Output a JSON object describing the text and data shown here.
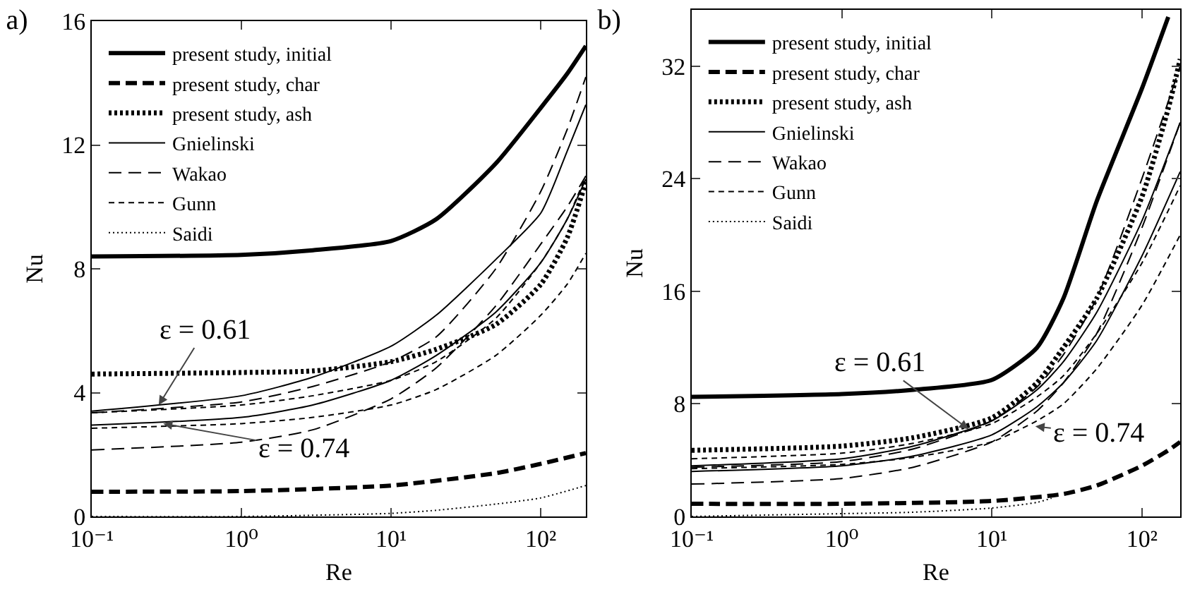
{
  "chart_data": [
    {
      "type": "line",
      "title": "a)",
      "xlabel": "Re",
      "ylabel": "Nu",
      "log": "x",
      "legend": "top left",
      "xlim": [
        0.1,
        200
      ],
      "xticks": [
        {
          "value": 0.1,
          "label": "10⁻¹"
        },
        {
          "value": 1,
          "label": "10⁰"
        },
        {
          "value": 10,
          "label": "10¹"
        },
        {
          "value": 100,
          "label": "10²"
        }
      ],
      "ylim": [
        0,
        16
      ],
      "yticks": [
        0,
        4,
        8,
        12,
        16
      ],
      "annotations": [
        {
          "text": "ε = 0.61",
          "x": 0.28,
          "y": 3.6
        },
        {
          "text": "ε = 0.74",
          "x": 0.3,
          "y": 3.0
        }
      ],
      "series": [
        {
          "name": "present study, initial",
          "color": "#000000",
          "line_style": "solid",
          "x": [
            0.1,
            1,
            3,
            10,
            20,
            50,
            100,
            150,
            200
          ],
          "values": [
            8.4,
            8.45,
            8.6,
            8.9,
            9.6,
            11.4,
            13.2,
            14.3,
            15.2
          ]
        },
        {
          "name": "present study, char",
          "color": "#000000",
          "line_style": "dashed",
          "x": [
            0.1,
            1,
            10,
            50,
            100,
            200
          ],
          "values": [
            0.8,
            0.82,
            1.0,
            1.4,
            1.7,
            2.05
          ]
        },
        {
          "name": "present study, ash",
          "color": "#000000",
          "line_style": "dotted",
          "x": [
            0.1,
            1,
            3,
            10,
            20,
            50,
            100,
            150,
            200
          ],
          "values": [
            4.6,
            4.65,
            4.7,
            5.0,
            5.4,
            6.2,
            7.5,
            9.0,
            10.8
          ]
        },
        {
          "name": "Gnielinski",
          "color": "#000000",
          "line_style": "solid",
          "x": [
            0.1,
            1,
            3,
            10,
            20,
            50,
            100,
            150,
            200
          ],
          "values": [
            3.4,
            3.9,
            4.5,
            5.5,
            6.5,
            8.3,
            9.8,
            11.8,
            13.3
          ]
        },
        {
          "color": "#000000",
          "line_style": "solid",
          "x": [
            0.1,
            1,
            3,
            10,
            20,
            50,
            100,
            150,
            200
          ],
          "values": [
            2.95,
            3.2,
            3.6,
            4.4,
            5.2,
            6.6,
            8.2,
            9.6,
            10.9
          ]
        },
        {
          "name": "Wakao",
          "color": "#000000",
          "line_style": "dashed",
          "x": [
            0.1,
            1,
            3,
            10,
            20,
            50,
            100,
            150,
            200
          ],
          "values": [
            3.35,
            3.7,
            4.2,
            5.0,
            5.8,
            8.0,
            10.5,
            12.5,
            14.2
          ]
        },
        {
          "color": "#000000",
          "line_style": "dashed",
          "x": [
            0.1,
            1,
            3,
            10,
            20,
            50,
            100,
            150,
            200
          ],
          "values": [
            2.15,
            2.4,
            2.8,
            3.8,
            4.8,
            6.8,
            8.8,
            10.0,
            11.0
          ]
        },
        {
          "name": "Gunn",
          "color": "#000000",
          "line_style": "dashed",
          "x": [
            0.1,
            1,
            3,
            10,
            20,
            50,
            100,
            150,
            200
          ],
          "values": [
            3.35,
            3.6,
            3.9,
            4.4,
            5.0,
            6.4,
            8.2,
            9.6,
            11.0
          ]
        },
        {
          "color": "#000000",
          "line_style": "dashed",
          "x": [
            0.1,
            1,
            3,
            10,
            20,
            50,
            100,
            150,
            200
          ],
          "values": [
            2.85,
            3.0,
            3.2,
            3.6,
            4.1,
            5.2,
            6.5,
            7.5,
            8.5
          ]
        },
        {
          "name": "Saidi",
          "color": "#000000",
          "line_style": "dotted",
          "x": [
            0.1,
            1,
            10,
            20,
            50,
            100,
            200
          ],
          "values": [
            0,
            0,
            0.1,
            0.2,
            0.4,
            0.6,
            1.0
          ]
        }
      ]
    },
    {
      "type": "line",
      "title": "b)",
      "xlabel": "Re",
      "ylabel": "Nu",
      "log": "x",
      "legend": "top left",
      "xlim": [
        0.1,
        180
      ],
      "xticks": [
        {
          "value": 0.1,
          "label": "10⁻¹"
        },
        {
          "value": 1,
          "label": "10⁰"
        },
        {
          "value": 10,
          "label": "10¹"
        },
        {
          "value": 100,
          "label": "10²"
        }
      ],
      "ylim": [
        0,
        36
      ],
      "yticks": [
        0,
        8,
        16,
        24,
        32
      ],
      "annotations": [
        {
          "text": "ε = 0.61",
          "x": 7,
          "y": 6.2
        },
        {
          "text": "ε = 0.74",
          "x": 19.5,
          "y": 6.4
        }
      ],
      "series": [
        {
          "name": "present study, initial",
          "color": "#000000",
          "line_style": "solid",
          "x": [
            0.1,
            1,
            3,
            10,
            20,
            30,
            50,
            100,
            150
          ],
          "values": [
            8.5,
            8.7,
            9.0,
            9.7,
            12.0,
            15.5,
            22.4,
            30.4,
            35.5
          ]
        },
        {
          "name": "present study, char",
          "color": "#000000",
          "line_style": "dashed",
          "x": [
            0.1,
            1,
            10,
            30,
            50,
            100,
            150,
            180
          ],
          "values": [
            0.9,
            0.9,
            1.1,
            1.6,
            2.2,
            3.6,
            4.7,
            5.3
          ]
        },
        {
          "name": "present study, ash",
          "color": "#000000",
          "line_style": "dotted",
          "x": [
            0.1,
            1,
            3,
            10,
            20,
            30,
            50,
            100,
            150,
            180
          ],
          "values": [
            4.7,
            5.0,
            5.6,
            7.0,
            9.5,
            12.0,
            15.5,
            22.7,
            29.0,
            32.5
          ]
        },
        {
          "name": "Gnielinski",
          "color": "#000000",
          "line_style": "solid",
          "x": [
            0.1,
            1,
            3,
            10,
            20,
            30,
            50,
            100,
            180
          ],
          "values": [
            3.6,
            4.1,
            5.0,
            6.8,
            9.0,
            11.0,
            14.5,
            21.0,
            28.0
          ]
        },
        {
          "color": "#000000",
          "line_style": "solid",
          "x": [
            0.1,
            1,
            3,
            10,
            20,
            30,
            50,
            100,
            180
          ],
          "values": [
            3.2,
            3.6,
            4.3,
            5.8,
            7.8,
            9.5,
            12.5,
            18.5,
            24.5
          ]
        },
        {
          "name": "Wakao",
          "color": "#000000",
          "line_style": "dashed",
          "x": [
            0.1,
            1,
            3,
            10,
            20,
            30,
            50,
            100,
            180
          ],
          "values": [
            3.5,
            3.9,
            4.8,
            6.8,
            9.2,
            11.5,
            15.5,
            24.0,
            32.0
          ]
        },
        {
          "color": "#000000",
          "line_style": "dashed",
          "x": [
            0.1,
            1,
            3,
            10,
            20,
            30,
            50,
            100,
            180
          ],
          "values": [
            2.3,
            2.7,
            3.5,
            5.3,
            7.5,
            9.5,
            13.0,
            20.5,
            28.0
          ]
        },
        {
          "name": "Gunn",
          "color": "#000000",
          "line_style": "dashed",
          "x": [
            0.1,
            1,
            3,
            10,
            20,
            30,
            50,
            100,
            180
          ],
          "values": [
            4.1,
            4.5,
            5.2,
            6.6,
            8.5,
            10.0,
            13.0,
            18.0,
            23.5
          ]
        },
        {
          "color": "#000000",
          "line_style": "dashed",
          "x": [
            0.1,
            1,
            3,
            10,
            20,
            30,
            50,
            100,
            180
          ],
          "values": [
            3.4,
            3.7,
            4.2,
            5.3,
            6.8,
            8.0,
            10.5,
            15.0,
            20.0
          ]
        },
        {
          "name": "Saidi",
          "color": "#000000",
          "line_style": "dotted",
          "x": [
            0.1,
            1,
            3,
            10,
            20,
            25
          ],
          "values": [
            0,
            0.2,
            0.3,
            0.6,
            1.0,
            1.3
          ]
        }
      ]
    }
  ]
}
